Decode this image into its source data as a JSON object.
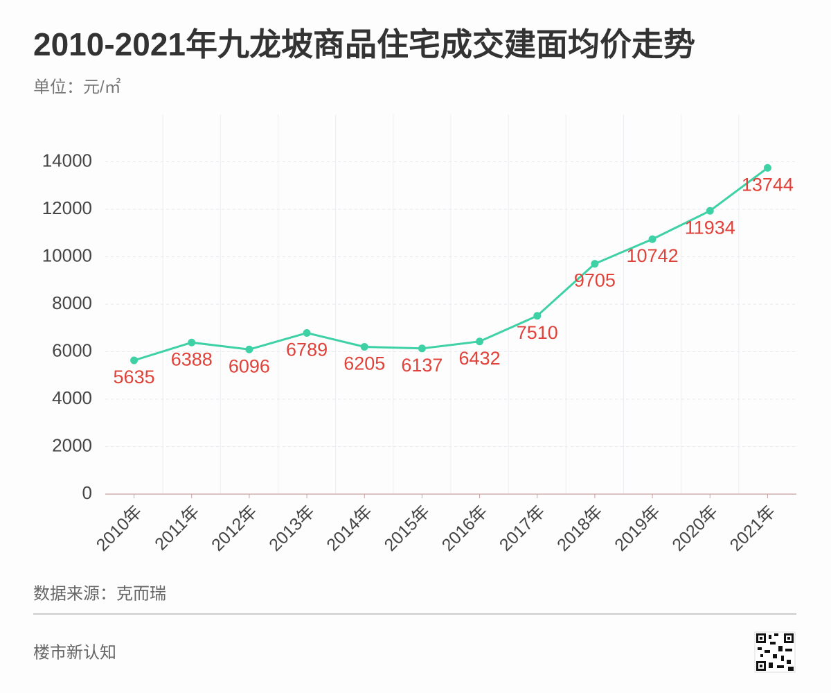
{
  "chart_data": {
    "type": "line",
    "title": "2010-2021年九龙坡商品住宅成交建面均价走势",
    "subtitle": "单位：元/㎡",
    "source": "数据来源：克而瑞",
    "footer": "楼市新认知",
    "categories": [
      "2010年",
      "2011年",
      "2012年",
      "2013年",
      "2014年",
      "2015年",
      "2016年",
      "2017年",
      "2018年",
      "2019年",
      "2020年",
      "2021年"
    ],
    "values": [
      5635,
      6388,
      6096,
      6789,
      6205,
      6137,
      6432,
      7510,
      9705,
      10742,
      11934,
      13744
    ],
    "color": "#3dd1a5",
    "label_color": "#e0423a",
    "ylim": [
      0,
      16000
    ],
    "yticks": [
      0,
      2000,
      4000,
      6000,
      8000,
      10000,
      12000,
      14000
    ],
    "grid": true
  }
}
